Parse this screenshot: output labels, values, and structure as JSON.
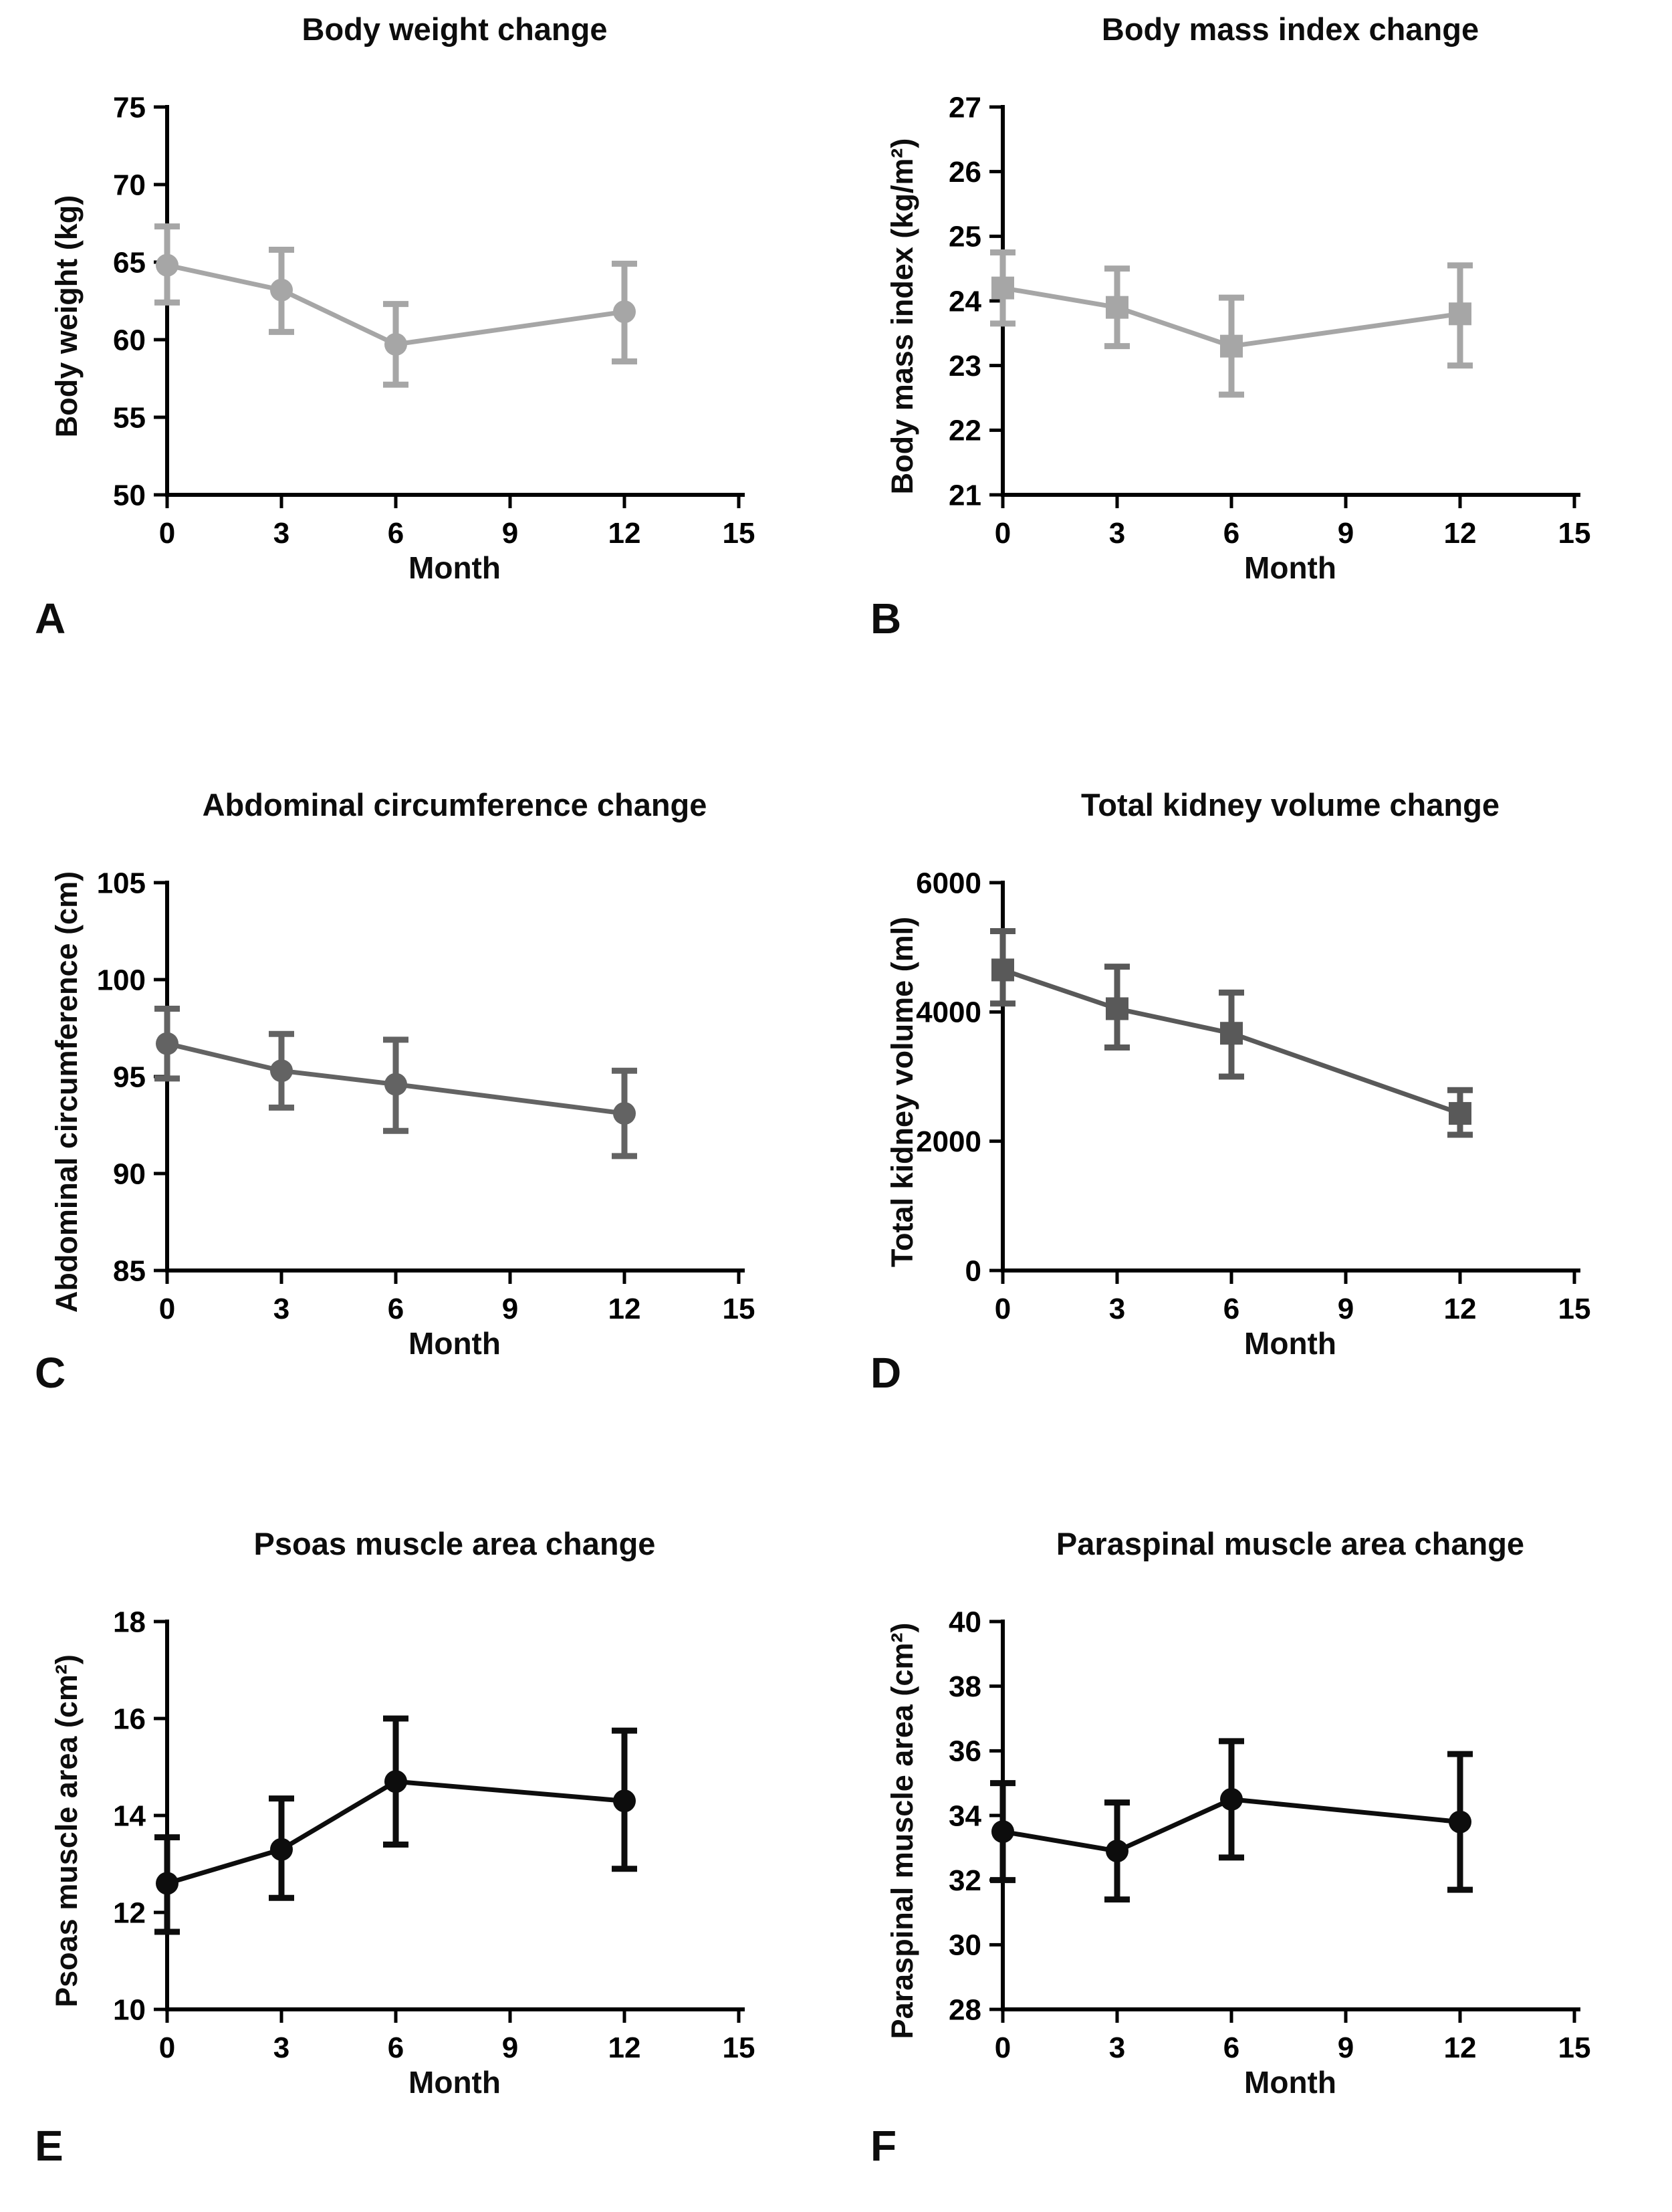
{
  "figure": {
    "background": "#ffffff",
    "axis_color": "#000000",
    "x_axis_label": "Month"
  },
  "chart_data": [
    {
      "letter": "A",
      "type": "line",
      "title": "Body weight change",
      "xlabel": "Month",
      "ylabel": "Body weight (kg)",
      "marker": "circle",
      "color": "#a6a6a6",
      "grid": false,
      "legend": null,
      "xlim": [
        0,
        15
      ],
      "xticks": [
        0,
        3,
        6,
        9,
        12,
        15
      ],
      "ylim": [
        50,
        75
      ],
      "yticks": [
        50,
        55,
        60,
        65,
        70,
        75
      ],
      "x": [
        0,
        3,
        6,
        12
      ],
      "y": [
        64.8,
        63.2,
        59.7,
        61.8
      ],
      "y_err_low": [
        62.4,
        60.5,
        57.1,
        58.6
      ],
      "y_err_high": [
        67.3,
        65.8,
        62.3,
        64.9
      ]
    },
    {
      "letter": "B",
      "type": "line",
      "title": "Body mass index change",
      "xlabel": "Month",
      "ylabel": "Body mass index (kg/m²)",
      "marker": "square",
      "color": "#a6a6a6",
      "grid": false,
      "legend": null,
      "xlim": [
        0,
        15
      ],
      "xticks": [
        0,
        3,
        6,
        9,
        12,
        15
      ],
      "ylim": [
        21,
        27
      ],
      "yticks": [
        21,
        22,
        23,
        24,
        25,
        26,
        27
      ],
      "x": [
        0,
        3,
        6,
        12
      ],
      "y": [
        24.2,
        23.9,
        23.3,
        23.8
      ],
      "y_err_low": [
        23.65,
        23.3,
        22.55,
        23.0
      ],
      "y_err_high": [
        24.75,
        24.5,
        24.05,
        24.55
      ]
    },
    {
      "letter": "C",
      "type": "line",
      "title": "Abdominal circumference change",
      "xlabel": "Month",
      "ylabel": "Abdominal circumference (cm)",
      "marker": "circle",
      "color": "#636363",
      "grid": false,
      "legend": null,
      "xlim": [
        0,
        15
      ],
      "xticks": [
        0,
        3,
        6,
        9,
        12,
        15
      ],
      "ylim": [
        85,
        105
      ],
      "yticks": [
        85,
        90,
        95,
        100,
        105
      ],
      "x": [
        0,
        3,
        6,
        12
      ],
      "y": [
        96.7,
        95.3,
        94.6,
        93.1
      ],
      "y_err_low": [
        94.9,
        93.4,
        92.2,
        90.9
      ],
      "y_err_high": [
        98.5,
        97.2,
        96.9,
        95.3
      ]
    },
    {
      "letter": "D",
      "type": "line",
      "title": "Total kidney volume change",
      "xlabel": "Month",
      "ylabel": "Total kidney volume (ml)",
      "marker": "square",
      "color": "#595959",
      "grid": false,
      "legend": null,
      "xlim": [
        0,
        15
      ],
      "xticks": [
        0,
        3,
        6,
        9,
        12,
        15
      ],
      "ylim": [
        0,
        6000
      ],
      "yticks": [
        0,
        2000,
        4000,
        6000
      ],
      "x": [
        0,
        3,
        6,
        12
      ],
      "y": [
        4650,
        4050,
        3670,
        2430
      ],
      "y_err_low": [
        4130,
        3450,
        3000,
        2100
      ],
      "y_err_high": [
        5250,
        4700,
        4300,
        2790
      ]
    },
    {
      "letter": "E",
      "type": "line",
      "title": "Psoas muscle area change",
      "xlabel": "Month",
      "ylabel": "Psoas muscle area (cm²)",
      "marker": "circle",
      "color": "#0d0d0d",
      "grid": false,
      "legend": null,
      "xlim": [
        0,
        15
      ],
      "xticks": [
        0,
        3,
        6,
        9,
        12,
        15
      ],
      "ylim": [
        10,
        18
      ],
      "yticks": [
        10,
        12,
        14,
        16,
        18
      ],
      "x": [
        0,
        3,
        6,
        12
      ],
      "y": [
        12.6,
        13.3,
        14.7,
        14.3
      ],
      "y_err_low": [
        11.6,
        12.3,
        13.4,
        12.9
      ],
      "y_err_high": [
        13.55,
        14.35,
        16.0,
        15.75
      ]
    },
    {
      "letter": "F",
      "type": "line",
      "title": "Paraspinal muscle area change",
      "xlabel": "Month",
      "ylabel": "Paraspinal muscle area (cm²)",
      "marker": "circle",
      "color": "#0d0d0d",
      "grid": false,
      "legend": null,
      "xlim": [
        0,
        15
      ],
      "xticks": [
        0,
        3,
        6,
        9,
        12,
        15
      ],
      "ylim": [
        28,
        40
      ],
      "yticks": [
        28,
        30,
        32,
        34,
        36,
        38,
        40
      ],
      "x": [
        0,
        3,
        6,
        12
      ],
      "y": [
        33.5,
        32.9,
        34.5,
        33.8
      ],
      "y_err_low": [
        32.0,
        31.4,
        32.7,
        31.7
      ],
      "y_err_high": [
        35.0,
        34.4,
        36.3,
        35.9
      ]
    }
  ]
}
